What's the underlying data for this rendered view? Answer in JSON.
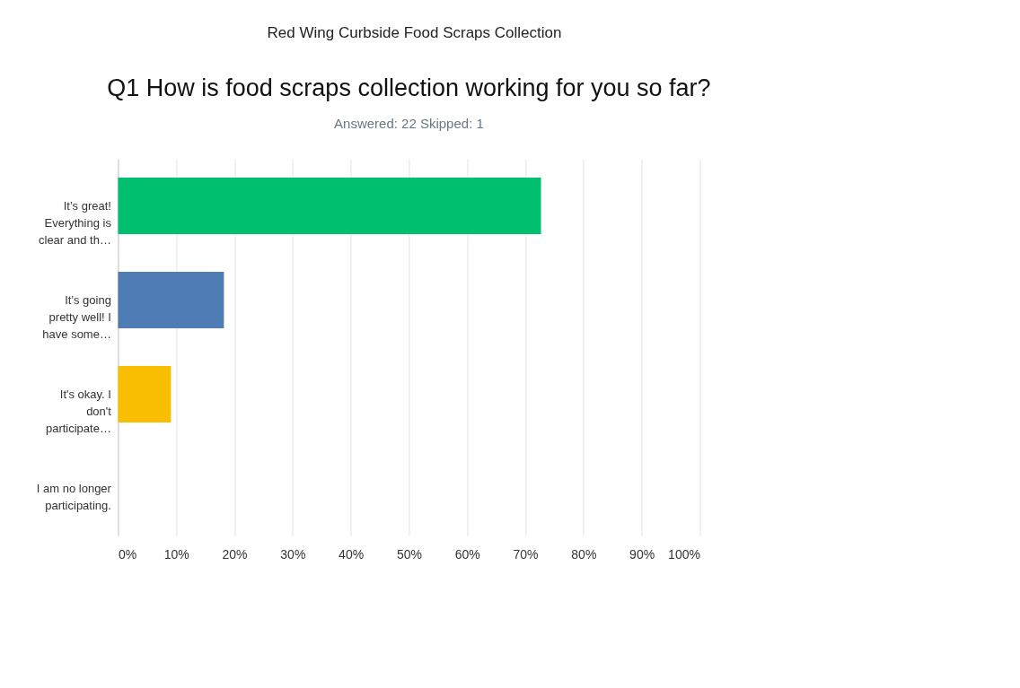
{
  "chart_data": {
    "type": "bar",
    "orientation": "horizontal",
    "title": "Q1 How is food scraps collection working for you so far?",
    "subtitle": "Answered: 22     Skipped: 1",
    "annotations": [
      "Red Wing Curbside Food Scraps Collection"
    ],
    "categories": [
      "It’s great! Everything is clear and th…",
      "It’s going pretty well! I have some…",
      "It's okay. I don't participate…",
      "I am no longer participating."
    ],
    "values": [
      72.7,
      18.2,
      9.1,
      0
    ],
    "colors": [
      "#00bf6f",
      "#507cb6",
      "#f9be00",
      "#6bc8cd"
    ],
    "xlim": [
      0,
      100
    ],
    "xticks": [
      {
        "value": 0,
        "label": "0%"
      },
      {
        "value": 10,
        "label": "10%"
      },
      {
        "value": 20,
        "label": "20%"
      },
      {
        "value": 30,
        "label": "30%"
      },
      {
        "value": 40,
        "label": "40%"
      },
      {
        "value": 50,
        "label": "50%"
      },
      {
        "value": 60,
        "label": "60%"
      },
      {
        "value": 70,
        "label": "70%"
      },
      {
        "value": 80,
        "label": "80%"
      },
      {
        "value": 90,
        "label": "90%"
      },
      {
        "value": 100,
        "label": "100%"
      }
    ],
    "grid": "x"
  }
}
